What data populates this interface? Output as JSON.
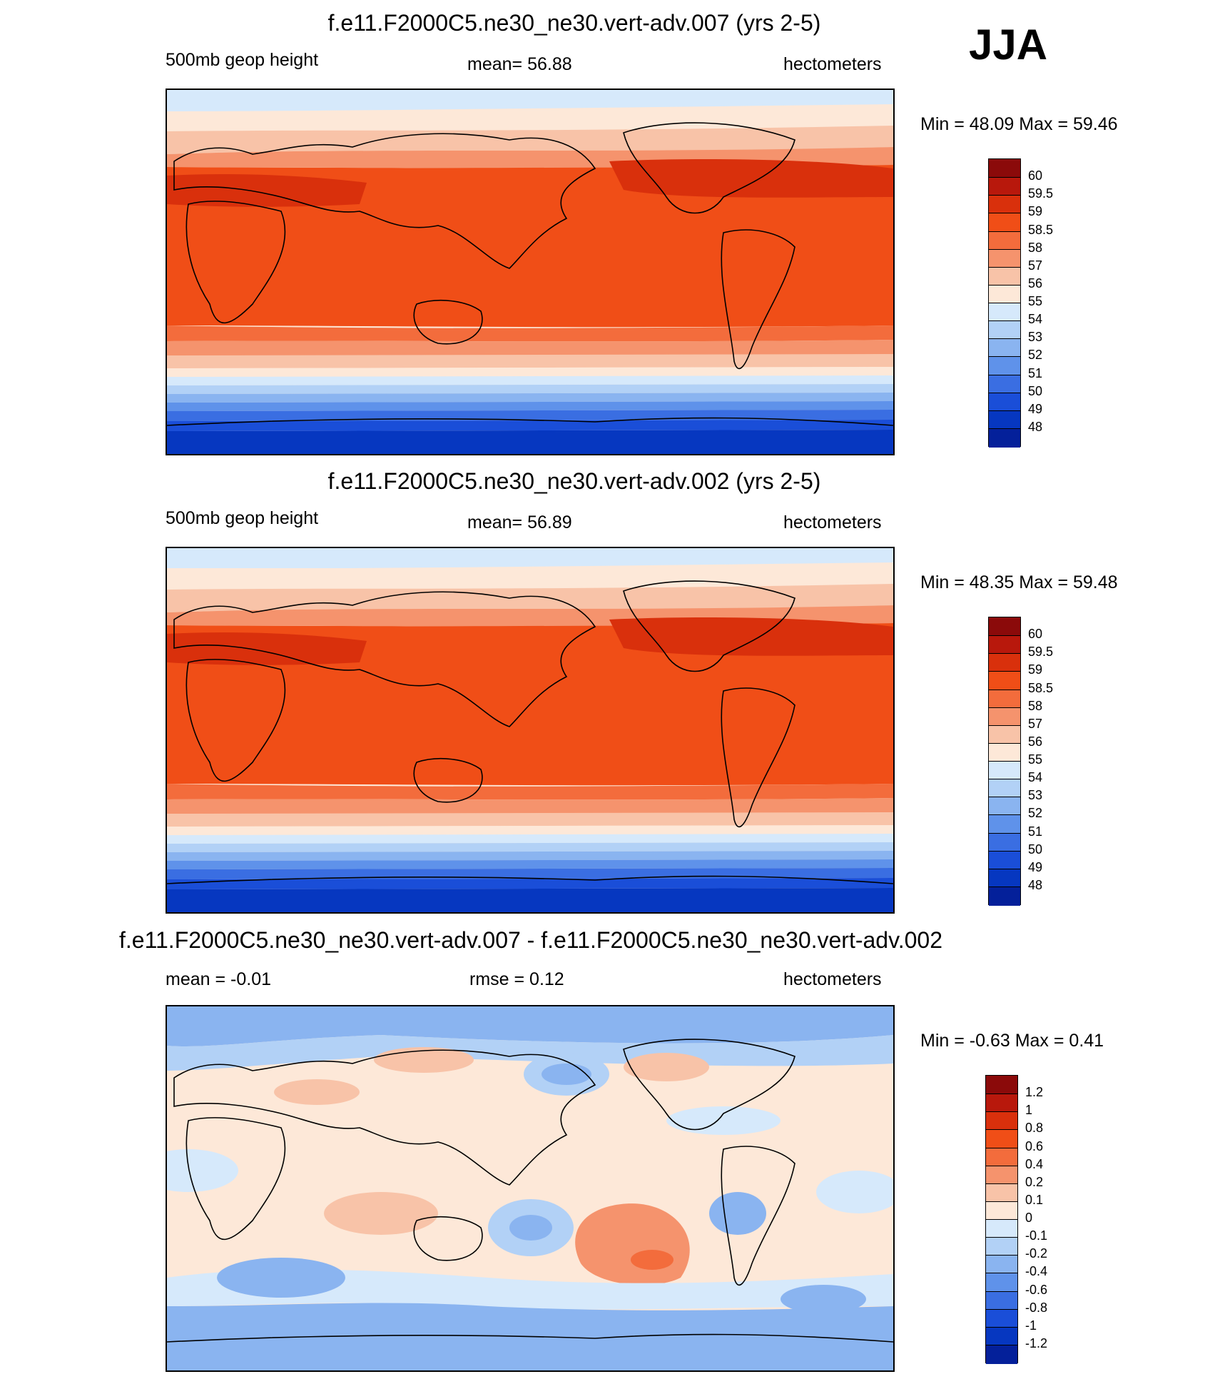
{
  "season": "JJA",
  "colors": {
    "abs_scale": [
      "#8b0a0a",
      "#b8180c",
      "#d9300c",
      "#f04e17",
      "#f36c3c",
      "#f5936d",
      "#f8c3a8",
      "#fde8d8",
      "#d6e9fb",
      "#b2d1f6",
      "#8ab4f0",
      "#5f92ea",
      "#3a6ee2",
      "#1a4ed8",
      "#0637c0",
      "#04209a"
    ],
    "diff_scale": [
      "#8b0a0a",
      "#b8180c",
      "#d9300c",
      "#f04e17",
      "#f36c3c",
      "#f5936d",
      "#f8c3a8",
      "#fde8d8",
      "#d6e9fb",
      "#b2d1f6",
      "#8ab4f0",
      "#5f92ea",
      "#3a6ee2",
      "#1a4ed8",
      "#0637c0",
      "#04209a"
    ]
  },
  "panels": [
    {
      "title": "f.e11.F2000C5.ne30_ne30.vert-adv.007 (yrs 2-5)",
      "left_label": "500mb geop height",
      "center_label": "mean=  56.88",
      "right_label": "hectometers",
      "minmax": "Min =  48.09 Max =  59.46",
      "colorbar_labels": [
        "60",
        "59.5",
        "59",
        "58.5",
        "58",
        "57",
        "56",
        "55",
        "54",
        "53",
        "52",
        "51",
        "50",
        "49",
        "48"
      ]
    },
    {
      "title": "f.e11.F2000C5.ne30_ne30.vert-adv.002 (yrs 2-5)",
      "left_label": "500mb geop height",
      "center_label": "mean=  56.89",
      "right_label": "hectometers",
      "minmax": "Min =  48.35 Max =  59.48",
      "colorbar_labels": [
        "60",
        "59.5",
        "59",
        "58.5",
        "58",
        "57",
        "56",
        "55",
        "54",
        "53",
        "52",
        "51",
        "50",
        "49",
        "48"
      ]
    },
    {
      "title": "f.e11.F2000C5.ne30_ne30.vert-adv.007 - f.e11.F2000C5.ne30_ne30.vert-adv.002",
      "left_label": "mean =  -0.01",
      "center_label": "rmse =   0.12",
      "right_label": "hectometers",
      "minmax": "Min =  -0.63 Max =   0.41",
      "colorbar_labels": [
        "1.2",
        "1",
        "0.8",
        "0.6",
        "0.4",
        "0.2",
        "0.1",
        "0",
        "-0.1",
        "-0.2",
        "-0.4",
        "-0.6",
        "-0.8",
        "-1",
        "-1.2"
      ]
    }
  ]
}
